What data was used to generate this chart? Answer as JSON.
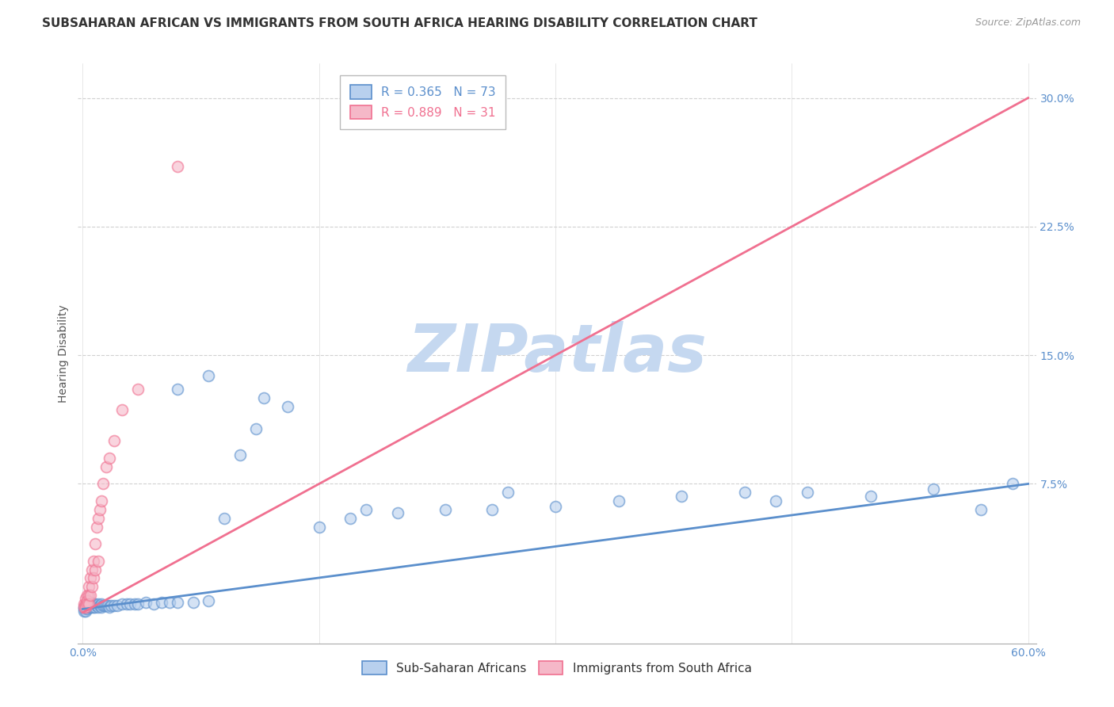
{
  "title": "SUBSAHARAN AFRICAN VS IMMIGRANTS FROM SOUTH AFRICA HEARING DISABILITY CORRELATION CHART",
  "source": "Source: ZipAtlas.com",
  "ylabel": "Hearing Disability",
  "xlim": [
    -0.003,
    0.605
  ],
  "ylim": [
    -0.018,
    0.32
  ],
  "ytick_values": [
    0.075,
    0.15,
    0.225,
    0.3
  ],
  "ytick_labels": [
    "7.5%",
    "15.0%",
    "22.5%",
    "30.0%"
  ],
  "xtick_values": [
    0.0,
    0.6
  ],
  "xtick_labels": [
    "0.0%",
    "60.0%"
  ],
  "watermark": "ZIPatlas",
  "legend1_text1": "R = 0.365   N = 73",
  "legend1_text2": "R = 0.889   N = 31",
  "legend2_labels": [
    "Sub-Saharan Africans",
    "Immigrants from South Africa"
  ],
  "blue_color": "#5b8fcc",
  "pink_color": "#f07090",
  "blue_fill": "#b8d0ee",
  "pink_fill": "#f5b8c8",
  "background_color": "#ffffff",
  "grid_color": "#cccccc",
  "title_color": "#333333",
  "axis_tick_color": "#5b8fcc",
  "watermark_color": "#c5d8f0",
  "title_fontsize": 11,
  "source_fontsize": 9,
  "ylabel_fontsize": 10,
  "tick_fontsize": 10,
  "legend_fontsize": 11,
  "watermark_fontsize": 60,
  "scatter_size": 100,
  "line_width": 2.0,
  "blue_line_x": [
    0.0,
    0.6
  ],
  "blue_line_y": [
    0.002,
    0.075
  ],
  "pink_line_x": [
    0.0,
    0.6
  ],
  "pink_line_y": [
    0.0,
    0.3
  ],
  "blue_x": [
    0.001,
    0.001,
    0.001,
    0.002,
    0.002,
    0.002,
    0.002,
    0.003,
    0.003,
    0.003,
    0.003,
    0.004,
    0.004,
    0.004,
    0.005,
    0.005,
    0.005,
    0.006,
    0.006,
    0.007,
    0.007,
    0.008,
    0.008,
    0.009,
    0.01,
    0.01,
    0.011,
    0.012,
    0.012,
    0.013,
    0.014,
    0.015,
    0.016,
    0.017,
    0.018,
    0.02,
    0.022,
    0.025,
    0.028,
    0.03,
    0.033,
    0.035,
    0.04,
    0.045,
    0.05,
    0.055,
    0.06,
    0.07,
    0.08,
    0.09,
    0.1,
    0.115,
    0.13,
    0.15,
    0.17,
    0.2,
    0.23,
    0.26,
    0.3,
    0.34,
    0.38,
    0.42,
    0.46,
    0.5,
    0.54,
    0.57,
    0.59,
    0.06,
    0.08,
    0.11,
    0.18,
    0.27,
    0.44
  ],
  "blue_y": [
    0.003,
    0.002,
    0.001,
    0.004,
    0.003,
    0.002,
    0.001,
    0.005,
    0.004,
    0.003,
    0.002,
    0.005,
    0.004,
    0.003,
    0.006,
    0.004,
    0.003,
    0.005,
    0.003,
    0.005,
    0.003,
    0.005,
    0.003,
    0.004,
    0.005,
    0.003,
    0.004,
    0.005,
    0.003,
    0.004,
    0.004,
    0.004,
    0.004,
    0.003,
    0.004,
    0.004,
    0.004,
    0.005,
    0.005,
    0.005,
    0.005,
    0.005,
    0.006,
    0.005,
    0.006,
    0.006,
    0.006,
    0.006,
    0.007,
    0.055,
    0.092,
    0.125,
    0.12,
    0.05,
    0.055,
    0.058,
    0.06,
    0.06,
    0.062,
    0.065,
    0.068,
    0.07,
    0.07,
    0.068,
    0.072,
    0.06,
    0.075,
    0.13,
    0.138,
    0.107,
    0.06,
    0.07,
    0.065
  ],
  "pink_x": [
    0.001,
    0.001,
    0.002,
    0.002,
    0.002,
    0.003,
    0.003,
    0.003,
    0.004,
    0.004,
    0.004,
    0.005,
    0.005,
    0.006,
    0.006,
    0.007,
    0.007,
    0.008,
    0.008,
    0.009,
    0.01,
    0.01,
    0.011,
    0.012,
    0.013,
    0.015,
    0.017,
    0.02,
    0.025,
    0.035,
    0.06
  ],
  "pink_y": [
    0.005,
    0.003,
    0.008,
    0.005,
    0.003,
    0.01,
    0.007,
    0.005,
    0.015,
    0.01,
    0.005,
    0.02,
    0.01,
    0.025,
    0.015,
    0.03,
    0.02,
    0.04,
    0.025,
    0.05,
    0.055,
    0.03,
    0.06,
    0.065,
    0.075,
    0.085,
    0.09,
    0.1,
    0.118,
    0.13,
    0.26
  ]
}
